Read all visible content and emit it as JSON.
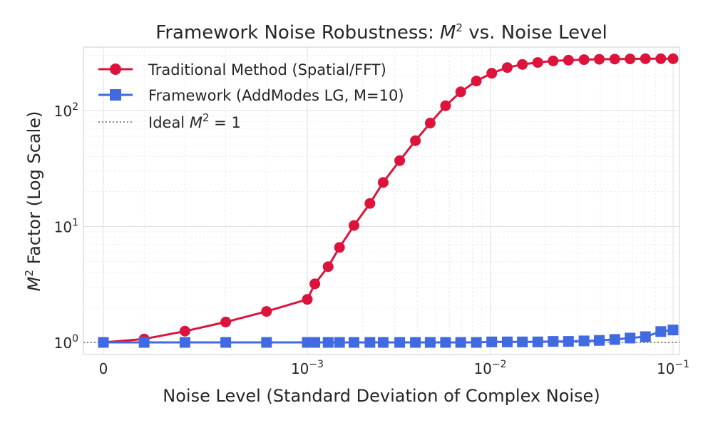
{
  "chart_data": {
    "type": "line",
    "title": {
      "prefix": "Framework Noise Robustness: ",
      "var": "M",
      "sup": "2",
      "suffix": " vs. Noise Level"
    },
    "xlabel": "Noise Level (Standard Deviation of Complex Noise)",
    "ylabel": {
      "var": "M",
      "sup": "2",
      "suffix": " Factor (Log Scale)"
    },
    "x_scale": "symlog",
    "y_scale": "log",
    "x_ticks": [
      {
        "value": 0,
        "base": "0",
        "exp": ""
      },
      {
        "value": 0.001,
        "base": "10",
        "exp": "−3"
      },
      {
        "value": 0.01,
        "base": "10",
        "exp": "−2"
      },
      {
        "value": 0.1,
        "base": "10",
        "exp": "−1"
      }
    ],
    "y_ticks": [
      {
        "value": 1,
        "base": "10",
        "exp": "0"
      },
      {
        "value": 10,
        "base": "10",
        "exp": "1"
      },
      {
        "value": 100,
        "base": "10",
        "exp": "2"
      }
    ],
    "grid": true,
    "legend_position": "top-left",
    "x": [
      0,
      0.0002,
      0.0004,
      0.0006,
      0.0008,
      0.001,
      0.0011,
      0.0013,
      0.0015,
      0.0018,
      0.0022,
      0.0026,
      0.0032,
      0.0039,
      0.0047,
      0.0057,
      0.0069,
      0.0084,
      0.0102,
      0.0124,
      0.015,
      0.0182,
      0.0221,
      0.0268,
      0.0326,
      0.0395,
      0.048,
      0.0582,
      0.0706,
      0.0857,
      0.1
    ],
    "series": [
      {
        "name": "Traditional Method (Spatial/FFT)",
        "color": "#dc143c",
        "marker": "circle",
        "values": [
          1.0,
          1.07,
          1.25,
          1.5,
          1.85,
          2.35,
          3.2,
          4.5,
          6.6,
          10.2,
          15.8,
          24,
          37,
          55,
          78,
          110,
          145,
          180,
          210,
          235,
          250,
          260,
          268,
          272,
          275,
          277,
          278,
          279,
          280,
          280,
          280
        ]
      },
      {
        "name": "Framework (AddModes LG, M=10)",
        "color": "#4169e1",
        "marker": "square",
        "values": [
          1.0,
          1.0,
          1.0,
          1.0,
          1.0,
          1.0,
          1.0,
          1.0,
          1.0,
          1.0,
          1.0,
          1.0,
          1.0,
          1.0,
          1.0,
          1.0,
          1.0,
          1.0,
          1.01,
          1.01,
          1.01,
          1.01,
          1.02,
          1.02,
          1.03,
          1.04,
          1.06,
          1.09,
          1.12,
          1.24,
          1.28
        ]
      }
    ],
    "reference_line": {
      "label_prefix": "Ideal ",
      "var": "M",
      "sup": "2",
      "suffix": " = 1",
      "value": 1,
      "color": "#666666",
      "style": "dotted"
    }
  }
}
